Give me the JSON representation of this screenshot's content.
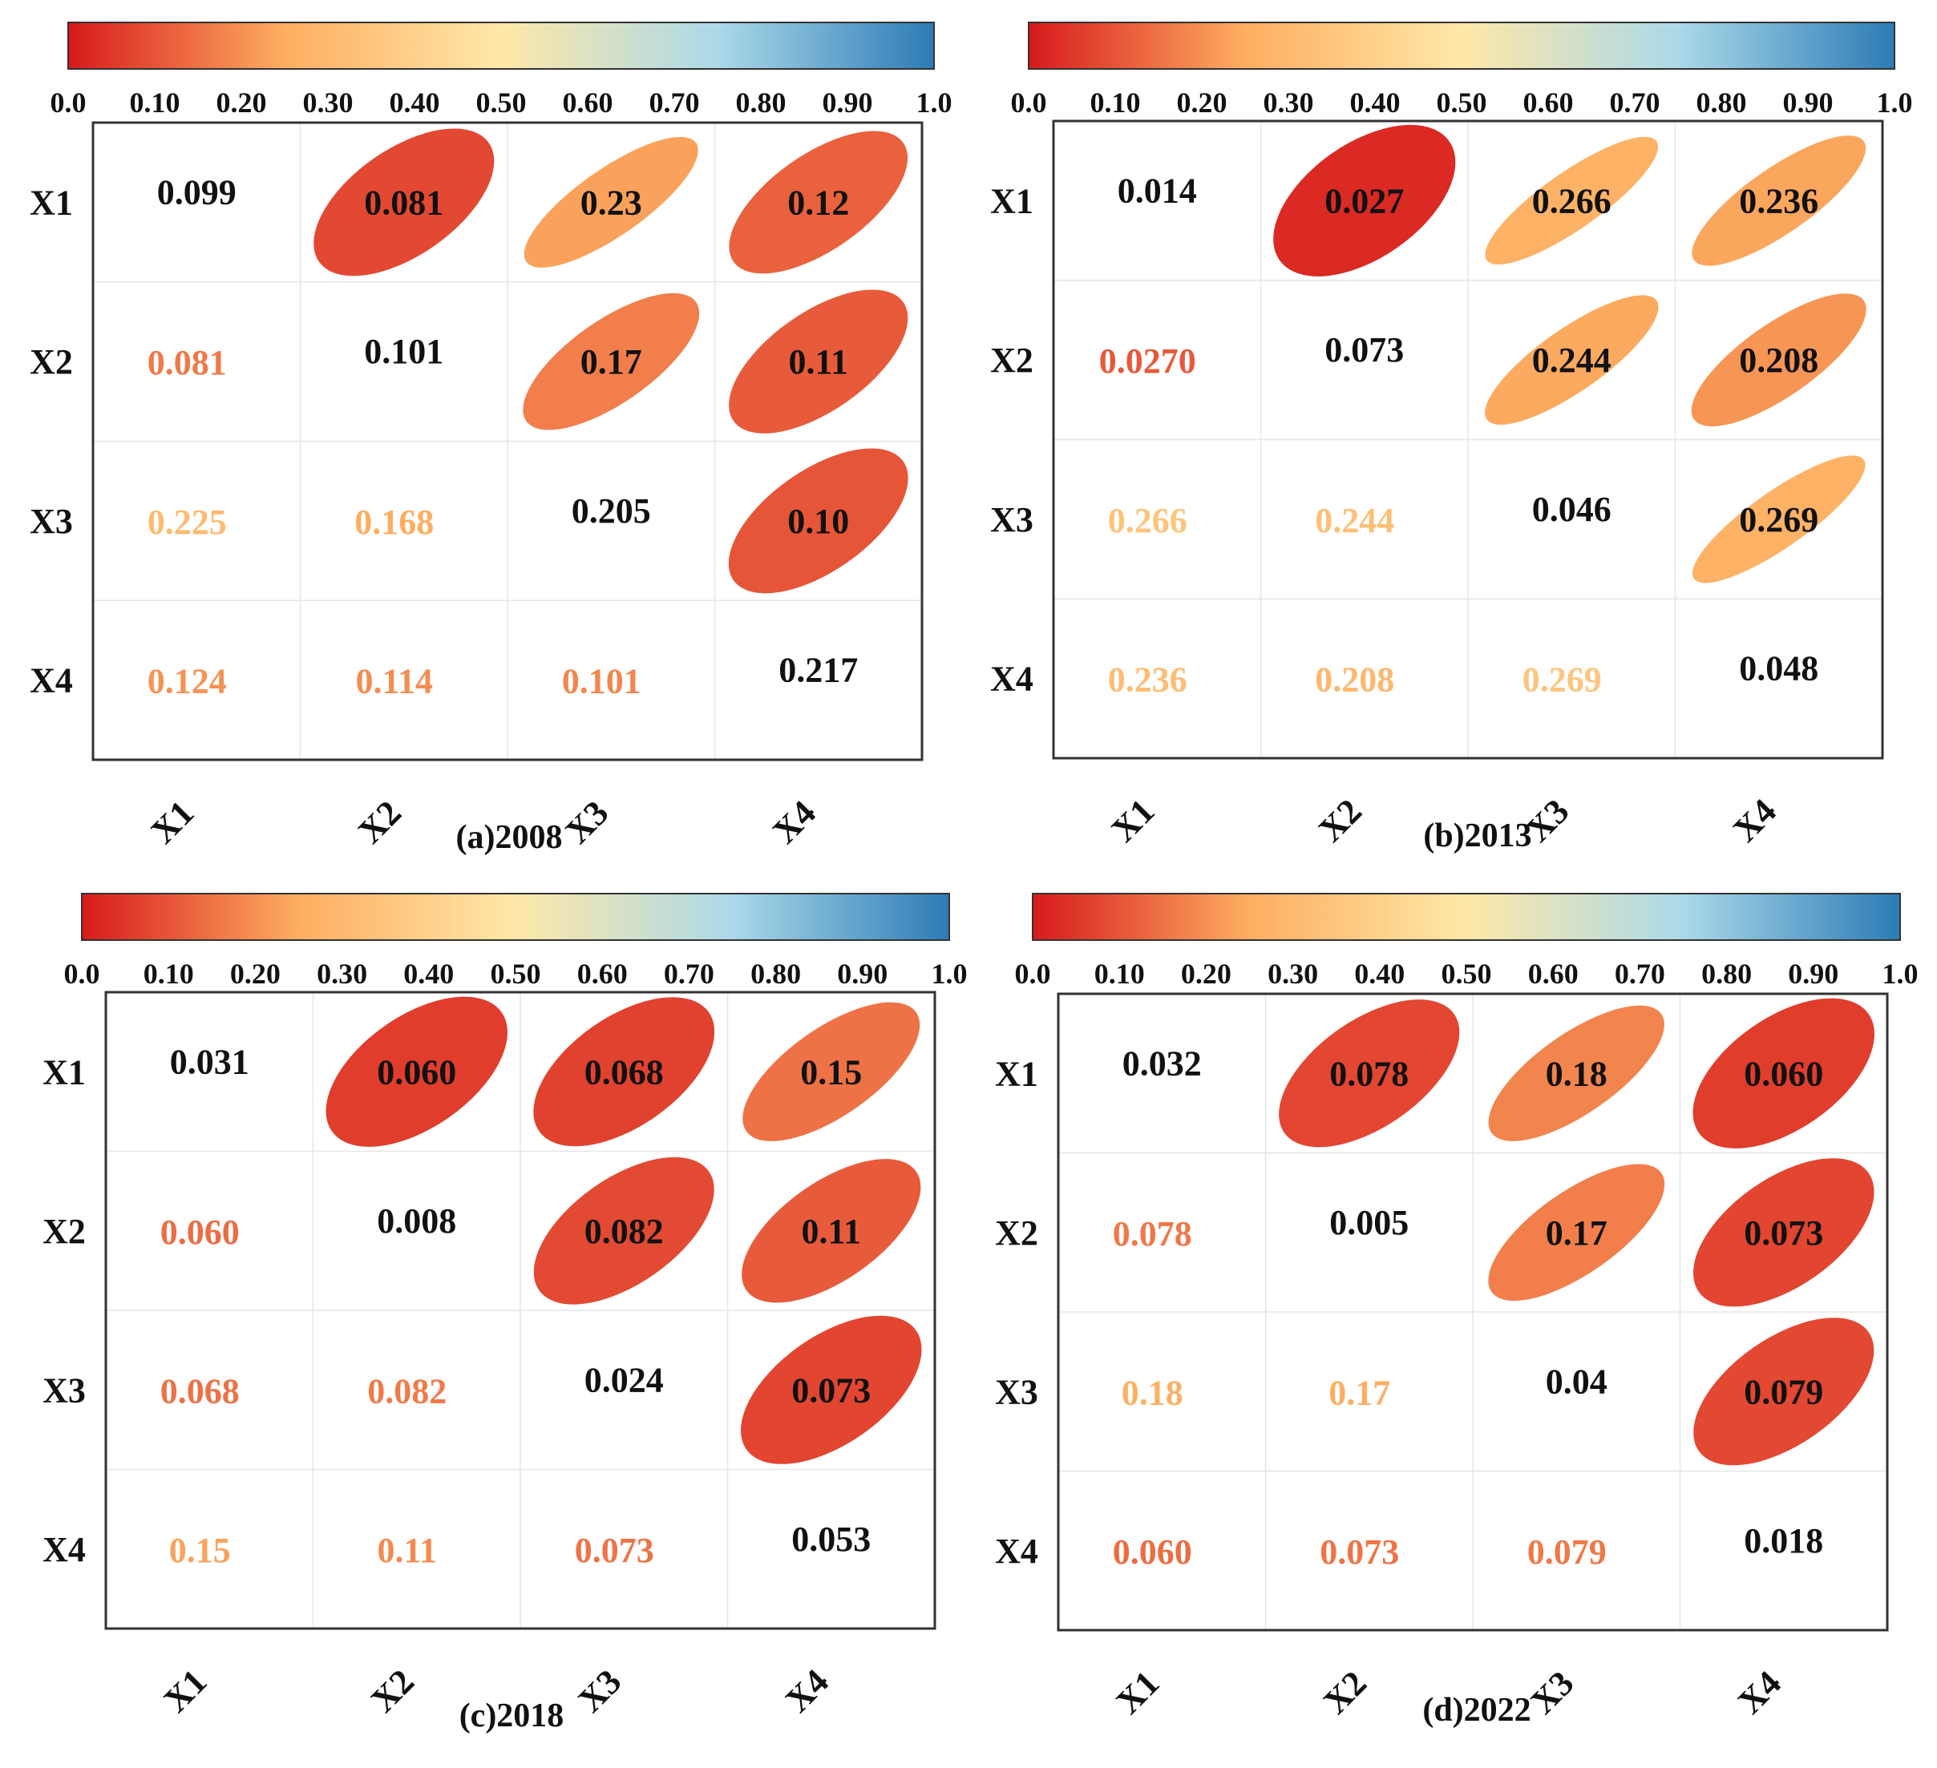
{
  "colorbar": {
    "ticks": [
      "0.0",
      "0.10",
      "0.20",
      "0.30",
      "0.40",
      "0.50",
      "0.60",
      "0.70",
      "0.80",
      "0.90",
      "1.0"
    ],
    "range": [
      0,
      1
    ],
    "colors": [
      "#d7191c",
      "#fdae61",
      "#fee8a8",
      "#abd9e9",
      "#2c7bb6"
    ]
  },
  "chart_data": [
    {
      "type": "heatmap",
      "caption": "(a)2008",
      "variables": [
        "X1",
        "X2",
        "X3",
        "X4"
      ],
      "diagonal": [
        "0.099",
        "0.101",
        "0.205",
        "0.217"
      ],
      "upper": [
        {
          "row": "X1",
          "col": "X2",
          "label": "0.081",
          "value": 0.081
        },
        {
          "row": "X1",
          "col": "X3",
          "label": "0.23",
          "value": 0.23
        },
        {
          "row": "X1",
          "col": "X4",
          "label": "0.12",
          "value": 0.12
        },
        {
          "row": "X2",
          "col": "X3",
          "label": "0.17",
          "value": 0.17
        },
        {
          "row": "X2",
          "col": "X4",
          "label": "0.11",
          "value": 0.11
        },
        {
          "row": "X3",
          "col": "X4",
          "label": "0.10",
          "value": 0.1
        }
      ],
      "lower": [
        {
          "row": "X2",
          "col": "X1",
          "label": "0.081",
          "value": 0.081
        },
        {
          "row": "X3",
          "col": "X1",
          "label": "0.225",
          "value": 0.225
        },
        {
          "row": "X3",
          "col": "X2",
          "label": "0.168",
          "value": 0.168
        },
        {
          "row": "X4",
          "col": "X1",
          "label": "0.124",
          "value": 0.124
        },
        {
          "row": "X4",
          "col": "X2",
          "label": "0.114",
          "value": 0.114
        },
        {
          "row": "X4",
          "col": "X3",
          "label": "0.101",
          "value": 0.101
        }
      ]
    },
    {
      "type": "heatmap",
      "caption": "(b)2013",
      "variables": [
        "X1",
        "X2",
        "X3",
        "X4"
      ],
      "diagonal": [
        "0.014",
        "0.073",
        "0.046",
        "0.048"
      ],
      "upper": [
        {
          "row": "X1",
          "col": "X2",
          "label": "0.027",
          "value": 0.027
        },
        {
          "row": "X1",
          "col": "X3",
          "label": "0.266",
          "value": 0.266
        },
        {
          "row": "X1",
          "col": "X4",
          "label": "0.236",
          "value": 0.236
        },
        {
          "row": "X2",
          "col": "X3",
          "label": "0.244",
          "value": 0.244
        },
        {
          "row": "X2",
          "col": "X4",
          "label": "0.208",
          "value": 0.208
        },
        {
          "row": "X3",
          "col": "X4",
          "label": "0.269",
          "value": 0.269
        }
      ],
      "lower": [
        {
          "row": "X2",
          "col": "X1",
          "label": "0.0270",
          "value": 0.027
        },
        {
          "row": "X3",
          "col": "X1",
          "label": "0.266",
          "value": 0.266
        },
        {
          "row": "X3",
          "col": "X2",
          "label": "0.244",
          "value": 0.244
        },
        {
          "row": "X4",
          "col": "X1",
          "label": "0.236",
          "value": 0.236
        },
        {
          "row": "X4",
          "col": "X2",
          "label": "0.208",
          "value": 0.208
        },
        {
          "row": "X4",
          "col": "X3",
          "label": "0.269",
          "value": 0.269
        }
      ]
    },
    {
      "type": "heatmap",
      "caption": "(c)2018",
      "variables": [
        "X1",
        "X2",
        "X3",
        "X4"
      ],
      "diagonal": [
        "0.031",
        "0.008",
        "0.024",
        "0.053"
      ],
      "upper": [
        {
          "row": "X1",
          "col": "X2",
          "label": "0.060",
          "value": 0.06
        },
        {
          "row": "X1",
          "col": "X3",
          "label": "0.068",
          "value": 0.068
        },
        {
          "row": "X1",
          "col": "X4",
          "label": "0.15",
          "value": 0.15
        },
        {
          "row": "X2",
          "col": "X3",
          "label": "0.082",
          "value": 0.082
        },
        {
          "row": "X2",
          "col": "X4",
          "label": "0.11",
          "value": 0.11
        },
        {
          "row": "X3",
          "col": "X4",
          "label": "0.073",
          "value": 0.073
        }
      ],
      "lower": [
        {
          "row": "X2",
          "col": "X1",
          "label": "0.060",
          "value": 0.06
        },
        {
          "row": "X3",
          "col": "X1",
          "label": "0.068",
          "value": 0.068
        },
        {
          "row": "X3",
          "col": "X2",
          "label": "0.082",
          "value": 0.082
        },
        {
          "row": "X4",
          "col": "X1",
          "label": "0.15",
          "value": 0.15
        },
        {
          "row": "X4",
          "col": "X2",
          "label": "0.11",
          "value": 0.11
        },
        {
          "row": "X4",
          "col": "X3",
          "label": "0.073",
          "value": 0.073
        }
      ]
    },
    {
      "type": "heatmap",
      "caption": "(d)2022",
      "variables": [
        "X1",
        "X2",
        "X3",
        "X4"
      ],
      "diagonal": [
        "0.032",
        "0.005",
        "0.04",
        "0.018"
      ],
      "upper": [
        {
          "row": "X1",
          "col": "X2",
          "label": "0.078",
          "value": 0.078
        },
        {
          "row": "X1",
          "col": "X3",
          "label": "0.18",
          "value": 0.18
        },
        {
          "row": "X1",
          "col": "X4",
          "label": "0.060",
          "value": 0.06
        },
        {
          "row": "X2",
          "col": "X3",
          "label": "0.17",
          "value": 0.17
        },
        {
          "row": "X2",
          "col": "X4",
          "label": "0.073",
          "value": 0.073
        },
        {
          "row": "X3",
          "col": "X4",
          "label": "0.079",
          "value": 0.079
        }
      ],
      "lower": [
        {
          "row": "X2",
          "col": "X1",
          "label": "0.078",
          "value": 0.078
        },
        {
          "row": "X3",
          "col": "X1",
          "label": "0.18",
          "value": 0.18
        },
        {
          "row": "X3",
          "col": "X2",
          "label": "0.17",
          "value": 0.17
        },
        {
          "row": "X4",
          "col": "X1",
          "label": "0.060",
          "value": 0.06
        },
        {
          "row": "X4",
          "col": "X2",
          "label": "0.073",
          "value": 0.073
        },
        {
          "row": "X4",
          "col": "X3",
          "label": "0.079",
          "value": 0.079
        }
      ]
    }
  ]
}
